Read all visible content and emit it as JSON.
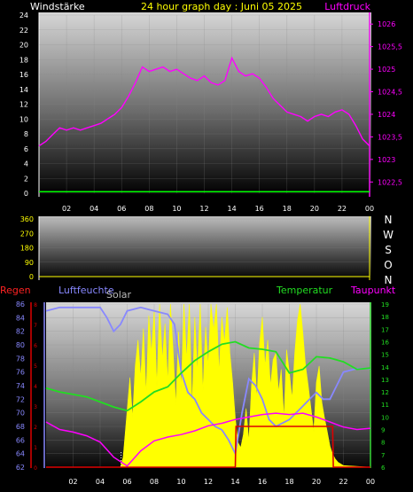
{
  "header": {
    "left_label": "Windstärke",
    "title": "24 hour graph day : Juni 05 2025",
    "right_label": "Luftdruck"
  },
  "compass": [
    "N",
    "W",
    "S",
    "O",
    "N"
  ],
  "bottom_labels": {
    "regen": "Regen",
    "luftfeuchte": "Luftfeuchte",
    "solar": "Solar",
    "temperatur": "Temperatur",
    "taupunkt": "Taupunkt",
    "set": "Set"
  },
  "colors": {
    "wind": "#00ff00",
    "pressure": "#ff00ff",
    "title": "#ffff00",
    "humidity": "#8888ff",
    "temperature": "#22dd22",
    "dewpoint": "#ff00ff",
    "solar": "#ffff00",
    "rain": "#dd0000",
    "direction": "#ffff00"
  },
  "chart_data": [
    {
      "type": "line",
      "name": "wind-pressure",
      "x_ticks": [
        "02",
        "04",
        "06",
        "08",
        "10",
        "12",
        "14",
        "16",
        "18",
        "20",
        "22",
        "00"
      ],
      "y_left_ticks": [
        "0",
        "2",
        "4",
        "6",
        "8",
        "10",
        "12",
        "14",
        "16",
        "18",
        "20",
        "22",
        "24"
      ],
      "y_right_ticks": [
        "1022,5",
        "1023",
        "1023,5",
        "1024",
        "1024,5",
        "1025",
        "1025,5",
        "1026"
      ],
      "y_left_range": [
        0,
        24
      ],
      "y_right_range": [
        1022.25,
        1026.2
      ],
      "series": [
        {
          "axis": "left",
          "x": [
            0,
            24
          ],
          "values": [
            0.2,
            0.2
          ]
        },
        {
          "axis": "right",
          "x": [
            0,
            0.5,
            1,
            1.5,
            2,
            2.5,
            3,
            3.5,
            4,
            4.5,
            5,
            5.5,
            6,
            6.5,
            7,
            7.5,
            8,
            8.5,
            9,
            9.5,
            10,
            10.5,
            11,
            11.5,
            12,
            12.5,
            13,
            13.5,
            14,
            14.5,
            15,
            15.5,
            16,
            16.5,
            17,
            17.5,
            18,
            18.5,
            19,
            19.5,
            20,
            20.5,
            21,
            21.5,
            22,
            22.5,
            23,
            23.5,
            24
          ],
          "values": [
            1023.3,
            1023.4,
            1023.55,
            1023.7,
            1023.65,
            1023.7,
            1023.65,
            1023.7,
            1023.75,
            1023.8,
            1023.9,
            1024.0,
            1024.15,
            1024.4,
            1024.7,
            1025.05,
            1024.95,
            1025.0,
            1025.05,
            1024.95,
            1025.0,
            1024.9,
            1024.8,
            1024.75,
            1024.85,
            1024.7,
            1024.65,
            1024.75,
            1025.25,
            1024.95,
            1024.85,
            1024.9,
            1024.8,
            1024.6,
            1024.35,
            1024.2,
            1024.05,
            1024.0,
            1023.95,
            1023.85,
            1023.95,
            1024.0,
            1023.95,
            1024.05,
            1024.1,
            1024.0,
            1023.75,
            1023.45,
            1023.3
          ]
        }
      ]
    },
    {
      "type": "scatter",
      "name": "wind-direction",
      "y_ticks": [
        "360",
        "270",
        "180",
        "90",
        "0"
      ],
      "y_range": [
        0,
        360
      ],
      "x": [
        0,
        24
      ],
      "values": [
        0,
        0
      ]
    },
    {
      "type": "line",
      "name": "climate",
      "y_left_ticks": [
        "62",
        "64",
        "66",
        "68",
        "70",
        "72",
        "74",
        "76",
        "78",
        "80",
        "82",
        "84",
        "86"
      ],
      "y_right_ticks": [
        "6",
        "7",
        "8",
        "9",
        "10",
        "11",
        "12",
        "13",
        "14",
        "15",
        "16",
        "17",
        "18",
        "19"
      ],
      "y_left_range": [
        62,
        86
      ],
      "y_right_range": [
        6,
        19
      ],
      "rain_ticks": [
        "0",
        "1",
        "2",
        "3",
        "4",
        "5",
        "6",
        "7",
        "8"
      ],
      "series": [
        {
          "axis": "left",
          "x": [
            0,
            1,
            2,
            3,
            4,
            4.5,
            5,
            5.5,
            6,
            7,
            8,
            9,
            9.5,
            10,
            10.5,
            11,
            11.5,
            12,
            12.5,
            13,
            13.5,
            14,
            14.5,
            15,
            15.5,
            16,
            16.5,
            17,
            17.5,
            18,
            18.5,
            19,
            19.5,
            20,
            20.5,
            21,
            21.5,
            22,
            23,
            24
          ],
          "values": [
            85,
            85.5,
            85.5,
            85.5,
            85.5,
            84,
            82,
            83,
            85,
            85.5,
            85,
            84.5,
            83,
            76,
            73,
            72,
            70,
            69,
            68,
            67.5,
            66,
            64,
            70,
            75,
            74,
            72,
            69,
            68,
            68.5,
            69,
            70,
            71,
            72,
            73,
            72,
            72,
            74,
            76,
            76.5,
            76.5
          ]
        },
        {
          "axis": "right",
          "x": [
            0,
            1,
            2,
            3,
            4,
            5,
            6,
            7,
            8,
            9,
            10,
            11,
            12,
            13,
            14,
            15,
            16,
            17,
            18,
            19,
            20,
            21,
            22,
            23,
            24
          ],
          "values": [
            12.3,
            12.0,
            11.8,
            11.6,
            11.2,
            10.8,
            10.5,
            11.2,
            12.0,
            12.4,
            13.5,
            14.5,
            15.2,
            15.8,
            16.0,
            15.5,
            15.4,
            15.2,
            13.5,
            13.8,
            14.8,
            14.7,
            14.4,
            13.8,
            13.9
          ]
        },
        {
          "axis": "right",
          "x": [
            0,
            1,
            2,
            3,
            4,
            5,
            6,
            7,
            8,
            9,
            10,
            11,
            12,
            13,
            14,
            15,
            16,
            17,
            18,
            19,
            20,
            21,
            22,
            23,
            24
          ],
          "values": [
            9.6,
            9.0,
            8.8,
            8.5,
            8.0,
            6.8,
            6.1,
            7.3,
            8.1,
            8.4,
            8.6,
            8.9,
            9.3,
            9.5,
            9.8,
            10.0,
            10.2,
            10.3,
            10.2,
            10.3,
            10.0,
            9.6,
            9.2,
            9.0,
            9.1
          ]
        },
        {
          "axis": "solar",
          "x": [
            0,
            5.5,
            5.7,
            6,
            6.2,
            6.4,
            6.6,
            6.8,
            7,
            7.2,
            7.4,
            7.6,
            7.8,
            8,
            8.2,
            8.4,
            8.6,
            8.8,
            9,
            9.2,
            9.4,
            9.6,
            9.8,
            10,
            10.2,
            10.4,
            10.6,
            10.8,
            11,
            11.2,
            11.4,
            11.6,
            11.8,
            12,
            12.2,
            12.4,
            12.6,
            12.8,
            13,
            13.2,
            13.4,
            13.6,
            13.8,
            14,
            14.2,
            14.4,
            14.6,
            14.8,
            15,
            15.2,
            15.4,
            15.6,
            15.8,
            16,
            16.2,
            16.4,
            16.6,
            16.8,
            17,
            17.2,
            17.4,
            17.6,
            17.8,
            18,
            18.2,
            18.4,
            18.6,
            18.8,
            19,
            19.2,
            19.4,
            19.6,
            19.8,
            20,
            20.2,
            20.4,
            20.6,
            20.8,
            21,
            21.2,
            21.4,
            21.6,
            21.8,
            22,
            24
          ],
          "values": [
            0,
            0,
            0.06,
            0.35,
            0.55,
            0.3,
            0.62,
            0.78,
            0.55,
            0.85,
            0.45,
            0.93,
            0.7,
            0.96,
            0.5,
            1.0,
            0.66,
            0.88,
            0.52,
            1.0,
            0.72,
            0.38,
            0.83,
            0.48,
            1.0,
            0.66,
            1.0,
            0.36,
            0.92,
            0.58,
            1.0,
            0.46,
            0.86,
            0.62,
            1.0,
            0.84,
            1.0,
            0.58,
            0.92,
            0.76,
            0.98,
            0.7,
            0.52,
            0.3,
            0.15,
            0.12,
            0.2,
            0.36,
            0.16,
            0.5,
            0.7,
            0.42,
            0.76,
            0.92,
            0.62,
            0.78,
            0.5,
            0.66,
            0.7,
            0.46,
            0.6,
            0.3,
            0.72,
            0.58,
            0.42,
            0.7,
            0.9,
            1.0,
            0.82,
            0.62,
            0.5,
            0.36,
            0.22,
            0.52,
            0.62,
            0.4,
            0.3,
            0.22,
            0.13,
            0.08,
            0.05,
            0.03,
            0.02,
            0.01,
            0
          ]
        },
        {
          "axis": "rain",
          "x": [
            0,
            5.5,
            14,
            14.05,
            21.2,
            21.25,
            24
          ],
          "values": [
            0,
            0,
            0,
            2,
            2,
            0,
            0
          ]
        }
      ]
    }
  ]
}
